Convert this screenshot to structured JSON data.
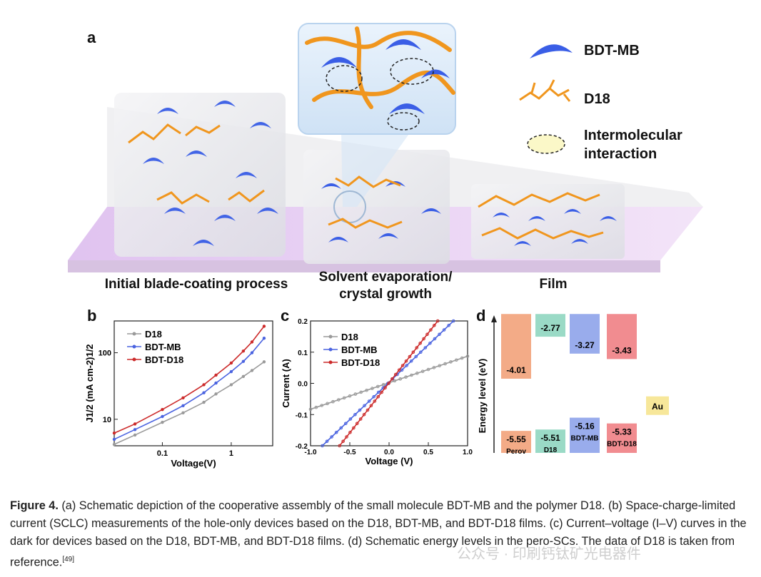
{
  "panel_a": {
    "letter": "a",
    "stages": [
      "Initial blade-coating process",
      "Solvent evaporation/",
      "crystal growth",
      "Film"
    ],
    "legend": {
      "bdt_mb": "BDT-MB",
      "d18": "D18",
      "interaction_line1": "Intermolecular",
      "interaction_line2": "interaction"
    },
    "colors": {
      "bdt_mb": "#3a5ee6",
      "d18": "#f0961e",
      "substrate": "#e7c9f2"
    }
  },
  "panel_b": {
    "letter": "b"
  },
  "panel_c": {
    "letter": "c"
  },
  "panel_d": {
    "letter": "d"
  },
  "chart_data": [
    {
      "panel": "b",
      "type": "line",
      "title": "",
      "xlabel": "Voltage(V)",
      "ylabel": "J1/2 (mA cm-2)1/2",
      "xscale": "log",
      "yscale": "log",
      "xlim": [
        0.02,
        4
      ],
      "ylim": [
        4,
        300
      ],
      "xticks": [
        "0.1",
        "1"
      ],
      "yticks": [
        "10",
        "100"
      ],
      "legend_position": "top-left",
      "x": [
        0.02,
        0.04,
        0.1,
        0.2,
        0.4,
        0.6,
        1.0,
        1.5,
        2.0,
        3.0
      ],
      "series": [
        {
          "name": "D18",
          "color": "#9a9a9a",
          "values": [
            4.2,
            5.8,
            9.0,
            12.5,
            18.0,
            24.0,
            33.0,
            44.0,
            54.0,
            73.0
          ]
        },
        {
          "name": "BDT-MB",
          "color": "#4a63e0",
          "values": [
            5.0,
            7.0,
            11.0,
            16.0,
            25.0,
            35.0,
            52.0,
            74.0,
            100.0,
            165.0
          ]
        },
        {
          "name": "BDT-D18",
          "color": "#cc2a2a",
          "values": [
            6.2,
            8.5,
            14.0,
            21.0,
            33.0,
            46.0,
            70.0,
            106.0,
            145.0,
            250.0
          ]
        }
      ]
    },
    {
      "panel": "c",
      "type": "line",
      "title": "",
      "xlabel": "Voltage (V)",
      "ylabel": "Current (A)",
      "xlim": [
        -1.0,
        1.0
      ],
      "ylim": [
        -0.2,
        0.2
      ],
      "xticks": [
        "-1.0",
        "-0.5",
        "0.0",
        "0.5",
        "1.0"
      ],
      "yticks": [
        "-0.2",
        "-0.1",
        "0.0",
        "0.1",
        "0.2"
      ],
      "legend_position": "top-left",
      "series": [
        {
          "name": "D18",
          "color": "#9a9a9a",
          "x": [
            -1.0,
            1.0
          ],
          "y": [
            -0.083,
            0.087
          ]
        },
        {
          "name": "BDT-MB",
          "color": "#4a63e0",
          "x": [
            -0.85,
            0.82
          ],
          "y": [
            -0.2,
            0.2
          ]
        },
        {
          "name": "BDT-D18",
          "color": "#cc2a2a",
          "x": [
            -0.63,
            0.62
          ],
          "y": [
            -0.2,
            0.2
          ]
        }
      ]
    },
    {
      "panel": "d",
      "type": "bar",
      "title": "",
      "ylabel": "Energy level (eV)",
      "categories": [
        "Perov skite",
        "D18",
        "BDT-MB",
        "BDT-D18",
        "Au"
      ],
      "lumo": [
        "-4.01",
        "-2.77",
        "-3.27",
        "-3.43",
        null
      ],
      "homo": [
        "-5.55",
        "-5.51",
        "-5.16",
        "-5.33",
        null
      ],
      "au_label": "Au",
      "homo_labels": [
        "Perov\nskite",
        "D18",
        "BDT-MB",
        "BDT-D18"
      ],
      "colors": [
        "#f2a27a",
        "#8fd6c0",
        "#8ea3ea",
        "#f07f84",
        "#f7e79a"
      ]
    }
  ],
  "caption": {
    "figure_label": "Figure 4.",
    "text": " (a) Schematic depiction of the cooperative assembly of the small molecule BDT-MB and the polymer D18. (b) Space-charge-limited current (SCLC) measurements of the hole-only devices based on the D18, BDT-MB, and BDT-D18 films. (c) Current–voltage (I–V) curves in the dark for devices based on the D18, BDT-MB, and BDT-D18 films. (d) Schematic energy levels in the pero-SCs. The data of D18 is taken from reference.",
    "ref": "[49]"
  },
  "watermark": "公众号 · 印刷钙钛矿光电器件"
}
